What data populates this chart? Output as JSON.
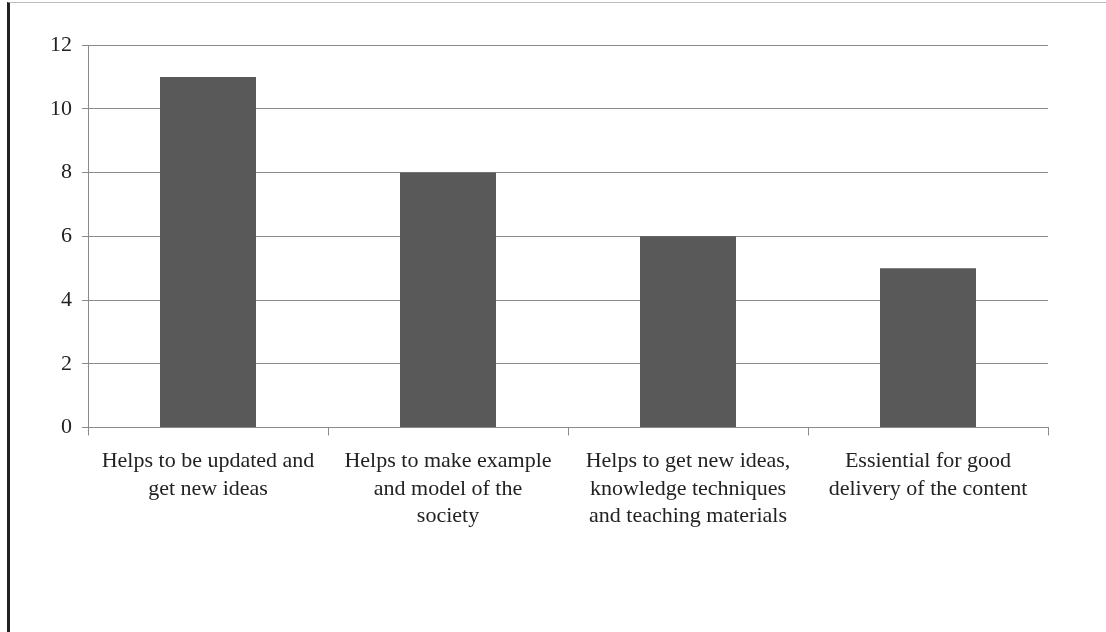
{
  "chart_data": {
    "type": "bar",
    "categories": [
      "Helps to be updated and get new ideas",
      "Helps to make example and model of the society",
      "Helps to get new ideas, knowledge techniques and teaching materials",
      "Essiential for good delivery of the content"
    ],
    "values": [
      11,
      8,
      6,
      5
    ],
    "color": "#595959",
    "ylim": [
      0,
      12
    ],
    "yticks": [
      0,
      2,
      4,
      6,
      8,
      10,
      12
    ],
    "grid": "y",
    "legend": false
  }
}
